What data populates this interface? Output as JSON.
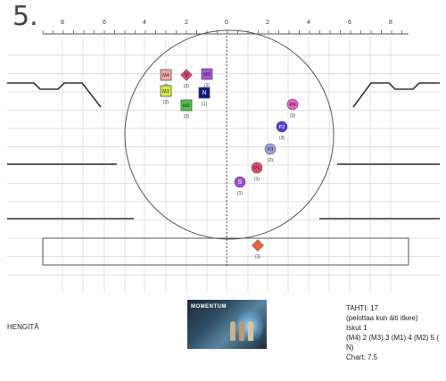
{
  "page_number": "5.",
  "ruler": {
    "left_labels": [
      "8",
      "6",
      "4",
      "2"
    ],
    "center_label": "0",
    "right_labels": [
      "2",
      "4",
      "6",
      "8"
    ]
  },
  "nodes": [
    {
      "id": "m4",
      "label": "M4",
      "count": "(2)",
      "shape": "square",
      "color": "#f2a7a7",
      "name": "node-m4"
    },
    {
      "id": "v",
      "label": "V",
      "count": "(2)",
      "shape": "diamond",
      "color": "#e0457a",
      "name": "node-v"
    },
    {
      "id": "m3",
      "label": "M3",
      "count": "(1)",
      "shape": "square",
      "color": "#a855d6",
      "name": "node-m3"
    },
    {
      "id": "m1",
      "label": "M1",
      "count": "(3)",
      "shape": "square",
      "color": "#d9e84a",
      "name": "node-m1"
    },
    {
      "id": "n",
      "label": "N",
      "count": "(1)",
      "shape": "square",
      "color": "#0a1a7a",
      "name": "node-n"
    },
    {
      "id": "m2",
      "label": "M2",
      "count": "(2)",
      "shape": "square",
      "color": "#4cc24a",
      "name": "node-m2"
    },
    {
      "id": "p4",
      "label": "P4",
      "count": "(3)",
      "shape": "circle",
      "color": "#e463c2",
      "name": "node-p4"
    },
    {
      "id": "p2",
      "label": "P2",
      "count": "(3)",
      "shape": "circle",
      "color": "#5a3bd1",
      "name": "node-p2"
    },
    {
      "id": "p3",
      "label": "P3",
      "count": "(2)",
      "shape": "circle",
      "color": "#9aa3e0",
      "name": "node-p3"
    },
    {
      "id": "p1",
      "label": "P1",
      "count": "(1)",
      "shape": "circle",
      "color": "#e04a6a",
      "name": "node-p1"
    },
    {
      "id": "s",
      "label": "S",
      "count": "(1)",
      "shape": "circle",
      "color": "#a34ad4",
      "name": "node-s"
    },
    {
      "id": "box",
      "label": "",
      "count": "(1)",
      "shape": "diamond",
      "color": "#e8623a",
      "name": "node-box-diamond"
    }
  ],
  "left_text": "HENGITÄ",
  "thumbnail_logo": "MOMENTUM",
  "notes": [
    "TAHTI: 17",
    "(pelottaa kun äiti itkee)",
    "Iskut 1",
    "(M4) 2 (M3) 3 (M1) 4 (M2) 5 (",
    "N)",
    "Chart: 7.5"
  ]
}
